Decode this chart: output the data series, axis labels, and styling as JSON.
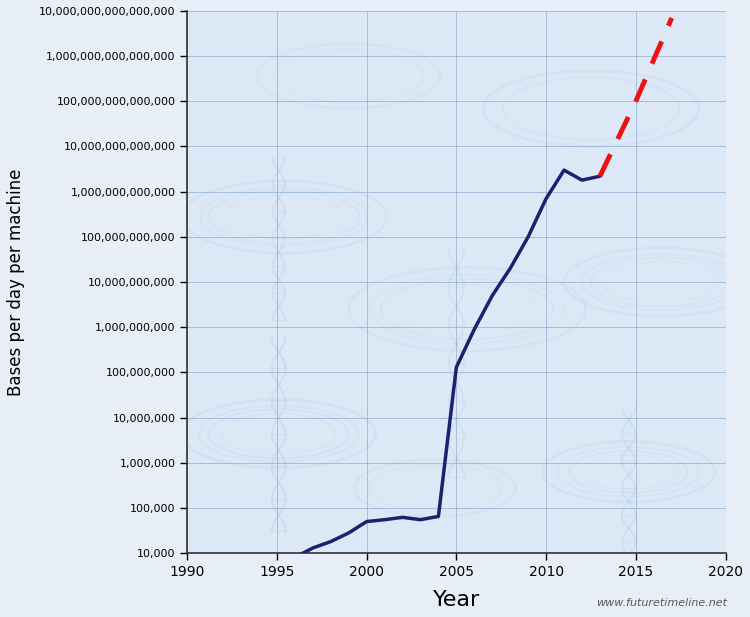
{
  "title": "",
  "xlabel": "Year",
  "ylabel": "Bases per day per machine",
  "website": "www.futuretimeline.net",
  "xlim": [
    1990,
    2020
  ],
  "outer_bg": "#e8eef8",
  "plot_bg": "#dce8f5",
  "grid_color": "#8aabcf",
  "solid_line_color": "#1c2070",
  "dashed_line_color": "#ee1111",
  "solid_data": [
    [
      1996,
      8000
    ],
    [
      1997,
      13000
    ],
    [
      1998,
      18000
    ],
    [
      1999,
      28000
    ],
    [
      2000,
      50000
    ],
    [
      2001,
      55000
    ],
    [
      2002,
      62000
    ],
    [
      2003,
      55000
    ],
    [
      2004,
      65000
    ],
    [
      2005,
      130000000
    ],
    [
      2006,
      900000000
    ],
    [
      2007,
      5000000000
    ],
    [
      2008,
      20000000000
    ],
    [
      2009,
      100000000000
    ],
    [
      2010,
      700000000000
    ],
    [
      2011,
      3000000000000
    ],
    [
      2012,
      1800000000000
    ],
    [
      2013,
      2200000000000
    ]
  ],
  "dashed_data": [
    [
      2013,
      2200000000000
    ],
    [
      2015,
      100000000000000
    ],
    [
      2017,
      7000000000000000
    ]
  ],
  "ytick_labels": [
    "10,000",
    "100,000",
    "1,000,000",
    "10,000,000",
    "100,000,000",
    "1,000,000,000",
    "10,000,000,000",
    "100,000,000,000",
    "1,000,000,000,000",
    "10,000,000,000,000",
    "100,000,000,000,000",
    "1,000,000,000,000,000",
    "10,000,000,000,000,000"
  ],
  "ytick_values": [
    10000.0,
    100000.0,
    1000000.0,
    10000000.0,
    100000000.0,
    1000000000.0,
    10000000000.0,
    100000000000.0,
    1000000000000.0,
    10000000000000.0,
    100000000000000.0,
    1000000000000000.0,
    1e+16
  ],
  "dna_color": "#b8cce4",
  "dna_alpha": 0.55
}
